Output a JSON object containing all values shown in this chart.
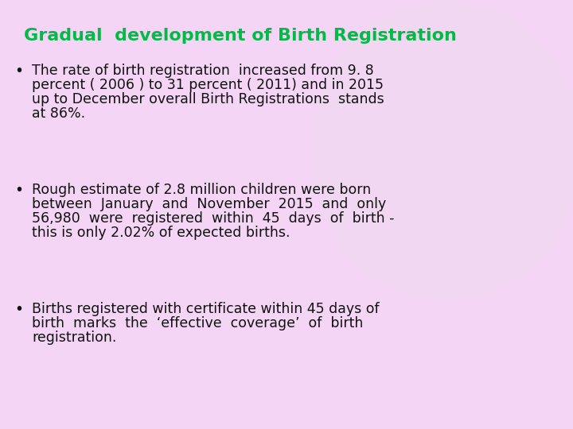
{
  "title": "Gradual  development of Birth Registration",
  "title_color": "#00bb44",
  "title_fontsize": 16,
  "background_color": "#f5d5f5",
  "bullet1_line1": "The rate of birth registration  increased from 9. 8",
  "bullet1_line2": "percent ( 2006 ) to 31 percent ( 2011) and in 2015",
  "bullet1_line3": "up to December overall Birth Registrations  stands",
  "bullet1_line4": "at 86%.",
  "bullet2_line1": "Rough estimate of 2.8 million children were born",
  "bullet2_line2": "between  January  and  November  2015  and  only",
  "bullet2_line3": "56,980  were  registered  within  45  days  of  birth -",
  "bullet2_line4": "this is only 2.02% of expected births.",
  "bullet3_line1": "Births registered with certificate within 45 days of",
  "bullet3_line2": "birth  marks  the  ‘effective  coverage’  of  birth",
  "bullet3_line3": "registration.",
  "text_color": "#111111",
  "text_fontsize": 12.5,
  "font_family": "DejaVu Sans"
}
